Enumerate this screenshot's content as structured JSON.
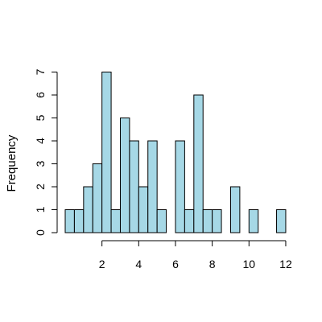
{
  "chart_data": {
    "type": "bar",
    "title": "",
    "xlabel": "",
    "ylabel": "Frequency",
    "bar_color": "#a6d8e6",
    "edge_color": "#000000",
    "grid": false,
    "bin_width": 0.5,
    "bin_starts": [
      0,
      0.5,
      1,
      1.5,
      2,
      2.5,
      3,
      3.5,
      4,
      4.5,
      5,
      5.5,
      6,
      6.5,
      7,
      7.5,
      8,
      8.5,
      9,
      9.5,
      10,
      10.5,
      11,
      11.5
    ],
    "values": [
      1,
      1,
      2,
      3,
      7,
      1,
      5,
      4,
      2,
      4,
      1,
      0,
      4,
      1,
      6,
      1,
      1,
      0,
      2,
      0,
      1,
      0,
      0,
      1
    ],
    "xlim": [
      0,
      12
    ],
    "ylim": [
      0,
      7
    ],
    "x_ticks": [
      2,
      4,
      6,
      8,
      10,
      12
    ],
    "x_tick_labels": [
      "2",
      "4",
      "6",
      "8",
      "10",
      "12"
    ],
    "y_ticks": [
      0,
      1,
      2,
      3,
      4,
      5,
      6,
      7
    ],
    "y_tick_labels": [
      "0",
      "1",
      "2",
      "3",
      "4",
      "5",
      "6",
      "7"
    ]
  }
}
